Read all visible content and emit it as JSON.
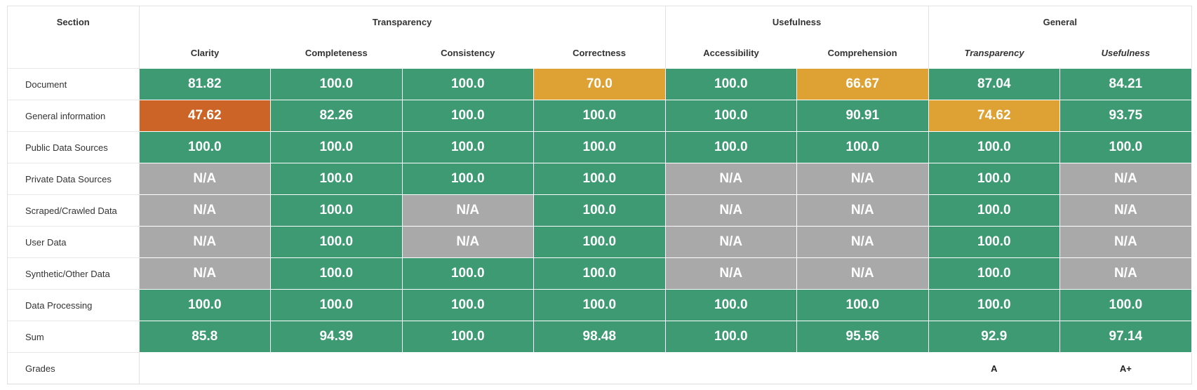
{
  "header": {
    "section_label": "Section",
    "groups": [
      "Transparency",
      "Usefulness",
      "General"
    ],
    "columns": [
      "Clarity",
      "Completeness",
      "Consistency",
      "Correctness",
      "Accessibility",
      "Comprehension",
      "Transparency",
      "Usefulness"
    ]
  },
  "colors": {
    "green": "#3d9a73",
    "yellow": "#dea234",
    "orange": "#cd6427",
    "gray": "#a9a9a9"
  },
  "rows": [
    {
      "label": "Document",
      "cells": [
        {
          "v": "81.82",
          "c": "green"
        },
        {
          "v": "100.0",
          "c": "green"
        },
        {
          "v": "100.0",
          "c": "green"
        },
        {
          "v": "70.0",
          "c": "yellow"
        },
        {
          "v": "100.0",
          "c": "green"
        },
        {
          "v": "66.67",
          "c": "yellow"
        },
        {
          "v": "87.04",
          "c": "green"
        },
        {
          "v": "84.21",
          "c": "green"
        }
      ]
    },
    {
      "label": "General information",
      "cells": [
        {
          "v": "47.62",
          "c": "orange"
        },
        {
          "v": "82.26",
          "c": "green"
        },
        {
          "v": "100.0",
          "c": "green"
        },
        {
          "v": "100.0",
          "c": "green"
        },
        {
          "v": "100.0",
          "c": "green"
        },
        {
          "v": "90.91",
          "c": "green"
        },
        {
          "v": "74.62",
          "c": "yellow"
        },
        {
          "v": "93.75",
          "c": "green"
        }
      ]
    },
    {
      "label": "Public Data Sources",
      "cells": [
        {
          "v": "100.0",
          "c": "green"
        },
        {
          "v": "100.0",
          "c": "green"
        },
        {
          "v": "100.0",
          "c": "green"
        },
        {
          "v": "100.0",
          "c": "green"
        },
        {
          "v": "100.0",
          "c": "green"
        },
        {
          "v": "100.0",
          "c": "green"
        },
        {
          "v": "100.0",
          "c": "green"
        },
        {
          "v": "100.0",
          "c": "green"
        }
      ]
    },
    {
      "label": "Private Data Sources",
      "cells": [
        {
          "v": "N/A",
          "c": "gray"
        },
        {
          "v": "100.0",
          "c": "green"
        },
        {
          "v": "100.0",
          "c": "green"
        },
        {
          "v": "100.0",
          "c": "green"
        },
        {
          "v": "N/A",
          "c": "gray"
        },
        {
          "v": "N/A",
          "c": "gray"
        },
        {
          "v": "100.0",
          "c": "green"
        },
        {
          "v": "N/A",
          "c": "gray"
        }
      ]
    },
    {
      "label": "Scraped/Crawled Data",
      "cells": [
        {
          "v": "N/A",
          "c": "gray"
        },
        {
          "v": "100.0",
          "c": "green"
        },
        {
          "v": "N/A",
          "c": "gray"
        },
        {
          "v": "100.0",
          "c": "green"
        },
        {
          "v": "N/A",
          "c": "gray"
        },
        {
          "v": "N/A",
          "c": "gray"
        },
        {
          "v": "100.0",
          "c": "green"
        },
        {
          "v": "N/A",
          "c": "gray"
        }
      ]
    },
    {
      "label": "User Data",
      "cells": [
        {
          "v": "N/A",
          "c": "gray"
        },
        {
          "v": "100.0",
          "c": "green"
        },
        {
          "v": "N/A",
          "c": "gray"
        },
        {
          "v": "100.0",
          "c": "green"
        },
        {
          "v": "N/A",
          "c": "gray"
        },
        {
          "v": "N/A",
          "c": "gray"
        },
        {
          "v": "100.0",
          "c": "green"
        },
        {
          "v": "N/A",
          "c": "gray"
        }
      ]
    },
    {
      "label": "Synthetic/Other Data",
      "cells": [
        {
          "v": "N/A",
          "c": "gray"
        },
        {
          "v": "100.0",
          "c": "green"
        },
        {
          "v": "100.0",
          "c": "green"
        },
        {
          "v": "100.0",
          "c": "green"
        },
        {
          "v": "N/A",
          "c": "gray"
        },
        {
          "v": "N/A",
          "c": "gray"
        },
        {
          "v": "100.0",
          "c": "green"
        },
        {
          "v": "N/A",
          "c": "gray"
        }
      ]
    },
    {
      "label": "Data Processing",
      "cells": [
        {
          "v": "100.0",
          "c": "green"
        },
        {
          "v": "100.0",
          "c": "green"
        },
        {
          "v": "100.0",
          "c": "green"
        },
        {
          "v": "100.0",
          "c": "green"
        },
        {
          "v": "100.0",
          "c": "green"
        },
        {
          "v": "100.0",
          "c": "green"
        },
        {
          "v": "100.0",
          "c": "green"
        },
        {
          "v": "100.0",
          "c": "green"
        }
      ]
    },
    {
      "label": "Sum",
      "cells": [
        {
          "v": "85.8",
          "c": "green"
        },
        {
          "v": "94.39",
          "c": "green"
        },
        {
          "v": "100.0",
          "c": "green"
        },
        {
          "v": "98.48",
          "c": "green"
        },
        {
          "v": "100.0",
          "c": "green"
        },
        {
          "v": "95.56",
          "c": "green"
        },
        {
          "v": "92.9",
          "c": "green"
        },
        {
          "v": "97.14",
          "c": "green"
        }
      ]
    }
  ],
  "grades": {
    "label": "Grades",
    "transparency": "A",
    "usefulness": "A+"
  }
}
